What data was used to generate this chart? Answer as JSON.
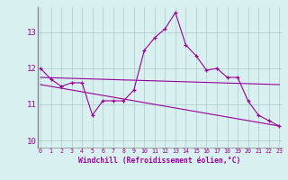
{
  "x": [
    0,
    1,
    2,
    3,
    4,
    5,
    6,
    7,
    8,
    9,
    10,
    11,
    12,
    13,
    14,
    15,
    16,
    17,
    18,
    19,
    20,
    21,
    22,
    23
  ],
  "line1": [
    12.0,
    11.7,
    11.5,
    11.6,
    11.6,
    10.7,
    11.1,
    11.1,
    11.1,
    11.4,
    12.5,
    12.85,
    13.1,
    13.55,
    12.65,
    12.35,
    11.95,
    12.0,
    11.75,
    11.75,
    11.1,
    10.7,
    10.55,
    10.4
  ],
  "line2_x": [
    0,
    23
  ],
  "line2": [
    11.75,
    11.55
  ],
  "line3_x": [
    0,
    23
  ],
  "line3": [
    11.55,
    10.4
  ],
  "line_color": "#990099",
  "spine_color": "#888888",
  "bg_color": "#d8f0f0",
  "grid_color": "#aacccc",
  "xlabel": "Windchill (Refroidissement éolien,°C)",
  "yticks": [
    10,
    11,
    12,
    13
  ],
  "xticks": [
    0,
    1,
    2,
    3,
    4,
    5,
    6,
    7,
    8,
    9,
    10,
    11,
    12,
    13,
    14,
    15,
    16,
    17,
    18,
    19,
    20,
    21,
    22,
    23
  ],
  "ylim": [
    9.8,
    13.7
  ],
  "xlim": [
    -0.3,
    23.3
  ]
}
